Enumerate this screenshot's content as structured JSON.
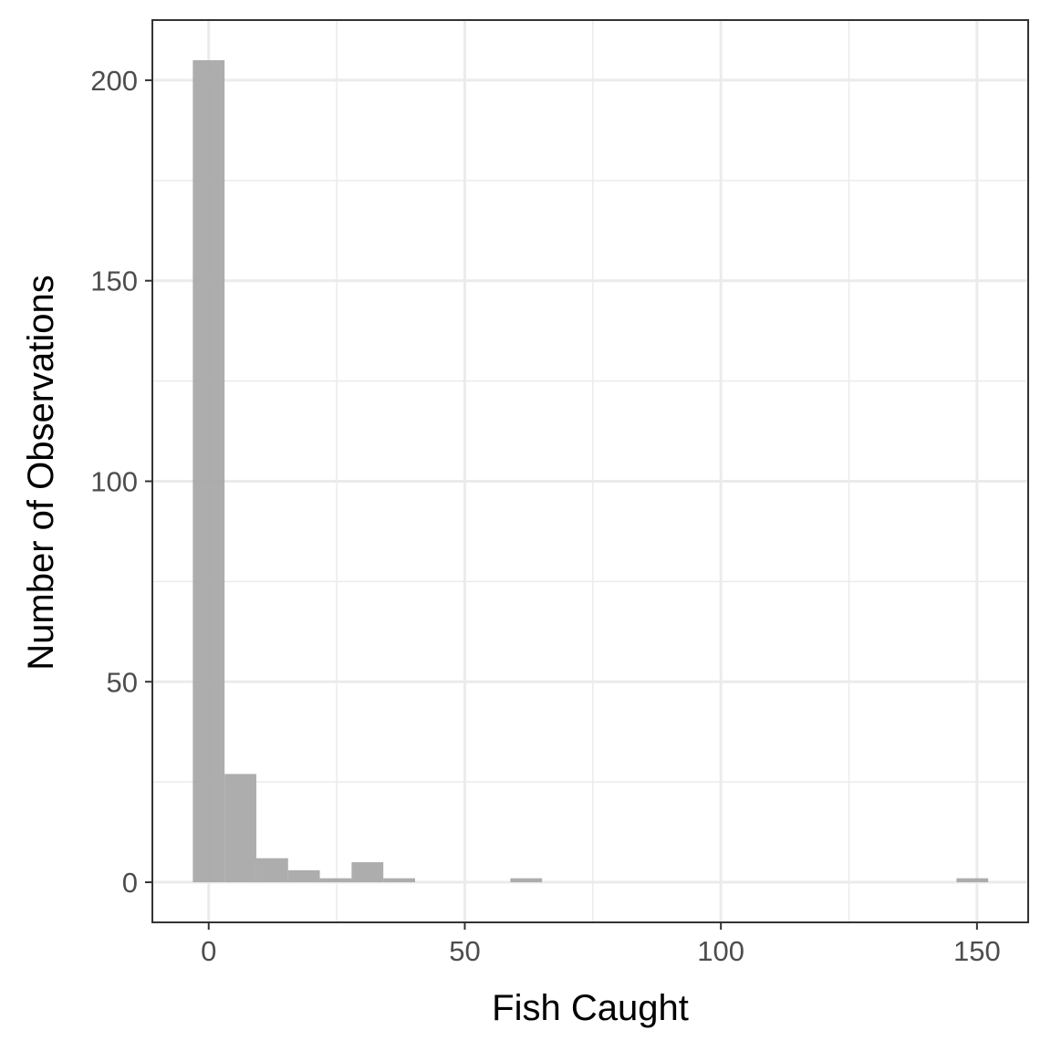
{
  "chart_data": {
    "type": "bar",
    "title": "",
    "xlabel": "Fish Caught",
    "ylabel": "Number of Observations",
    "xlim": [
      -11,
      160
    ],
    "ylim": [
      -10,
      215
    ],
    "x_ticks": [
      0,
      50,
      100,
      150
    ],
    "x_minor_ticks": [
      25,
      75,
      125
    ],
    "y_ticks": [
      0,
      50,
      100,
      150,
      200
    ],
    "y_minor_ticks": [
      25,
      75,
      125,
      175
    ],
    "grid": true,
    "legend": "none",
    "bar_color": "#a9a9a9",
    "bins": [
      {
        "x0": -3.1,
        "x1": 3.1,
        "count": 205
      },
      {
        "x0": 3.1,
        "x1": 9.3,
        "count": 27
      },
      {
        "x0": 9.3,
        "x1": 15.5,
        "count": 6
      },
      {
        "x0": 15.5,
        "x1": 21.7,
        "count": 3
      },
      {
        "x0": 21.7,
        "x1": 27.9,
        "count": 1
      },
      {
        "x0": 27.9,
        "x1": 34.1,
        "count": 5
      },
      {
        "x0": 34.1,
        "x1": 40.3,
        "count": 1
      },
      {
        "x0": 40.3,
        "x1": 46.5,
        "count": 0
      },
      {
        "x0": 46.5,
        "x1": 52.7,
        "count": 0
      },
      {
        "x0": 52.7,
        "x1": 58.9,
        "count": 0
      },
      {
        "x0": 58.9,
        "x1": 65.1,
        "count": 1
      },
      {
        "x0": 146.0,
        "x1": 152.2,
        "count": 1
      }
    ]
  }
}
